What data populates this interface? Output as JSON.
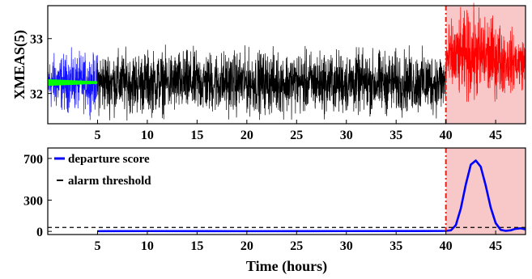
{
  "chart_data": [
    {
      "type": "line",
      "ylabel": "XMEAS(5)",
      "xlim": [
        0,
        48
      ],
      "ylim": [
        31.45,
        33.6
      ],
      "yticks": [
        32,
        33
      ],
      "xticks": [
        5,
        10,
        15,
        20,
        25,
        30,
        35,
        40,
        45
      ],
      "xtick_labels": [
        "5",
        "10",
        "15",
        "20",
        "25",
        "30",
        "35",
        "40",
        "45"
      ],
      "fault_region": {
        "start": 40,
        "end": 48,
        "color": "#f8c8c8",
        "line_color": "#e8201a"
      },
      "series": [
        {
          "segment": "initial",
          "x_range": [
            0,
            5
          ],
          "center": 32.2,
          "half_amplitude": 0.45,
          "color": "#1010ff"
        },
        {
          "segment": "initial-mean",
          "x_range": [
            0,
            5
          ],
          "center": 32.2,
          "half_amplitude": 0.06,
          "color": "#00ff00"
        },
        {
          "segment": "normal",
          "x_range": [
            5,
            40
          ],
          "center": 32.2,
          "half_amplitude": 0.5,
          "color": "#000000"
        },
        {
          "segment": "faulty",
          "x_range": [
            40,
            48
          ],
          "center": 32.55,
          "peak_x": 43,
          "peak_value": 33.3,
          "color": "#ff0000"
        }
      ]
    },
    {
      "type": "line",
      "xlabel": "Time (hours)",
      "xlim": [
        0,
        48
      ],
      "ylim": [
        -30,
        800
      ],
      "yticks": [
        0,
        300,
        700
      ],
      "xticks": [
        5,
        10,
        15,
        20,
        25,
        30,
        35,
        40,
        45
      ],
      "xtick_labels": [
        "5",
        "10",
        "15",
        "20",
        "25",
        "30",
        "35",
        "40",
        "45"
      ],
      "legend_position": "top-left",
      "fault_region": {
        "start": 40,
        "end": 48,
        "color": "#f8c8c8",
        "line_color": "#e8201a"
      },
      "series": [
        {
          "name": "departure score",
          "color": "#0000ff",
          "x": [
            5,
            10,
            20,
            30,
            39.5,
            40,
            40.5,
            41,
            41.5,
            42,
            42.5,
            43,
            43.5,
            44,
            44.5,
            45,
            45.5,
            46,
            46.5,
            47,
            47.5,
            48
          ],
          "y": [
            2,
            3,
            2,
            3,
            4,
            5,
            10,
            60,
            220,
            450,
            640,
            680,
            620,
            440,
            230,
            80,
            15,
            5,
            10,
            25,
            30,
            20
          ]
        },
        {
          "name": "alarm threshold",
          "color": "#000000",
          "dash": true,
          "x": [
            0,
            48
          ],
          "y": [
            38,
            38
          ]
        }
      ]
    }
  ]
}
